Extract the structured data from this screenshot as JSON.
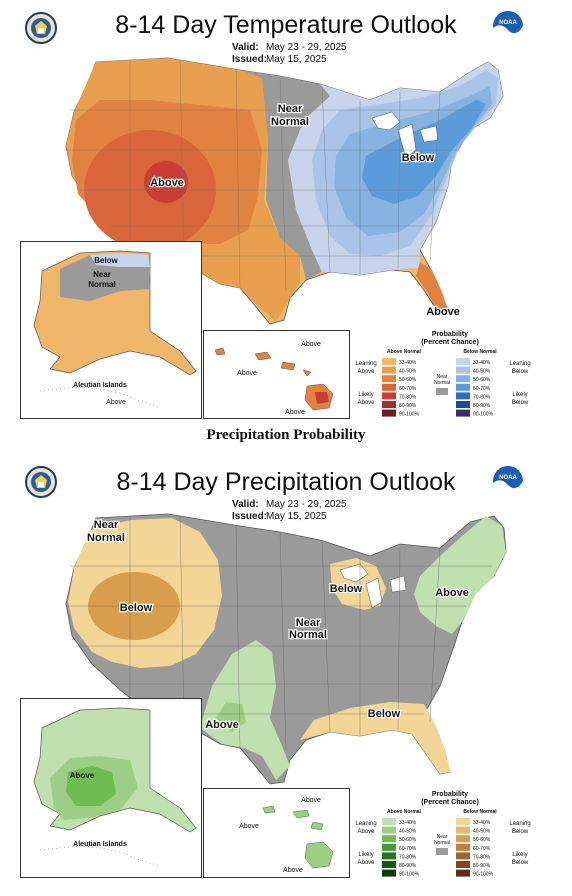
{
  "colors": {
    "temp_above_33": "#f0b76a",
    "temp_above_40": "#e89f4f",
    "temp_above_50": "#e08340",
    "temp_above_60": "#d9653a",
    "temp_above_70": "#c93d35",
    "temp_above_80": "#a52a2a",
    "temp_above_90": "#6e1d1d",
    "temp_below_33": "#c8d4ec",
    "temp_below_40": "#a9c4e8",
    "temp_below_50": "#86b3e2",
    "temp_below_60": "#5c9bd9",
    "temp_below_70": "#2f6fb8",
    "temp_below_80": "#1f4a8a",
    "temp_below_90": "#3a2a6e",
    "precip_above_33": "#c1e0b0",
    "precip_above_40": "#9ccf85",
    "precip_above_50": "#6ebc52",
    "precip_above_60": "#3f9e2e",
    "precip_above_70": "#237a1c",
    "precip_above_80": "#155814",
    "precip_above_90": "#0f3a0a",
    "precip_below_33": "#f3d596",
    "precip_below_40": "#e6b870",
    "precip_below_50": "#d89d4d",
    "precip_below_60": "#c4803a",
    "precip_below_70": "#a5612a",
    "precip_below_80": "#7f4620",
    "precip_below_90": "#5a2e18",
    "near_normal": "#9a9a9a"
  },
  "temperature_outlook": {
    "title": "8-14 Day Temperature Outlook",
    "valid_label": "Valid:",
    "valid_value": "May 23 - 29, 2025",
    "issued_label": "Issued:",
    "issued_value": "May 15, 2025",
    "map_labels": {
      "above_sw": "Above",
      "near_normal_line1": "Near",
      "near_normal_line2": "Normal",
      "below_east": "Below",
      "above_florida": "Above",
      "alaska_below": "Below",
      "alaska_near_line1": "Near",
      "alaska_near_line2": "Normal",
      "aleutian": "Aleutian Islands",
      "aleutian_above": "Above",
      "hawaii_above_1": "Above",
      "hawaii_above_2": "Above",
      "hawaii_above_3": "Above"
    },
    "legend": {
      "title_line1": "Probability",
      "title_line2": "(Percent Chance)",
      "above_header": "Above Normal",
      "below_header": "Below Normal",
      "leaning_above": [
        "Leaning",
        "Above"
      ],
      "likely_above": [
        "Likely",
        "Above"
      ],
      "leaning_below": [
        "Leaning",
        "Below"
      ],
      "likely_below": [
        "Likely",
        "Below"
      ],
      "near_normal": [
        "Near",
        "Normal"
      ],
      "ranges": [
        "33-40%",
        "40-50%",
        "50-60%",
        "60-70%",
        "70-80%",
        "80-90%",
        "90-100%"
      ]
    }
  },
  "section_heading": "Precipitation Probability",
  "precipitation_outlook": {
    "title": "8-14 Day Precipitation Outlook",
    "valid_label": "Valid:",
    "valid_value": "May 23 - 29, 2025",
    "issued_label": "Issued:",
    "issued_value": "May 15, 2025",
    "map_labels": {
      "near_nw_line1": "Near",
      "near_nw_line2": "Normal",
      "below_west": "Below",
      "below_great_lakes": "Below",
      "above_northeast": "Above",
      "near_center_line1": "Near",
      "near_center_line2": "Normal",
      "above_texas": "Above",
      "below_southeast": "Below",
      "alaska_above": "Above",
      "aleutian": "Aleutian Islands",
      "hawaii_above_1": "Above",
      "hawaii_above_2": "Above",
      "hawaii_above_3": "Above"
    },
    "legend": {
      "title_line1": "Probability",
      "title_line2": "(Percent Chance)",
      "above_header": "Above Normal",
      "below_header": "Below Normal",
      "leaning_above": [
        "Leaning",
        "Above"
      ],
      "likely_above": [
        "Likely",
        "Above"
      ],
      "leaning_below": [
        "Leaning",
        "Below"
      ],
      "likely_below": [
        "Likely",
        "Below"
      ],
      "near_normal": [
        "Near",
        "Normal"
      ],
      "ranges": [
        "33-40%",
        "40-50%",
        "50-60%",
        "60-70%",
        "70-80%",
        "80-90%",
        "90-100%"
      ]
    }
  }
}
